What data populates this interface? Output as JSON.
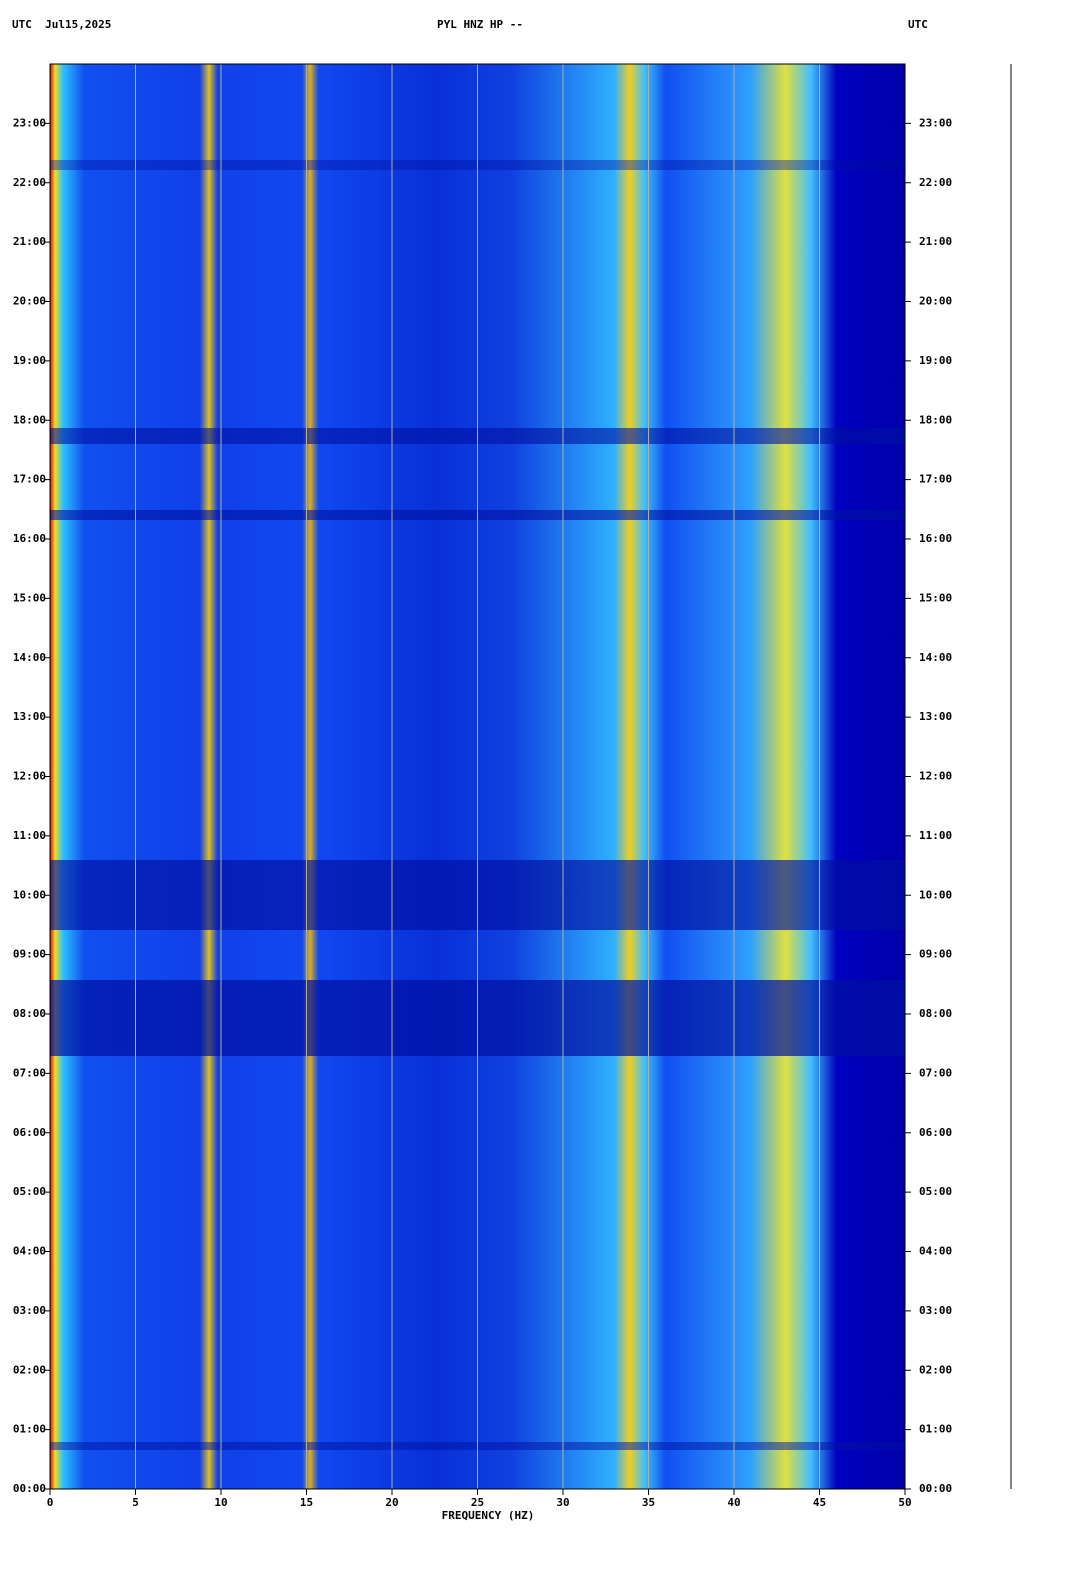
{
  "chart_data": {
    "type": "spectrogram",
    "title": "PYL HNZ HP --",
    "left_header": "UTC  Jul15,2025",
    "right_header": "UTC",
    "x_label": "FREQUENCY (HZ)",
    "xlim": [
      0,
      50
    ],
    "xticks": [
      0,
      5,
      10,
      15,
      20,
      25,
      30,
      35,
      40,
      45,
      50
    ],
    "ylim": [
      0,
      24
    ],
    "yticks": [
      {
        "value": 0,
        "label": "00:00"
      },
      {
        "value": 1,
        "label": "01:00"
      },
      {
        "value": 2,
        "label": "02:00"
      },
      {
        "value": 3,
        "label": "03:00"
      },
      {
        "value": 4,
        "label": "04:00"
      },
      {
        "value": 5,
        "label": "05:00"
      },
      {
        "value": 6,
        "label": "06:00"
      },
      {
        "value": 7,
        "label": "07:00"
      },
      {
        "value": 8,
        "label": "08:00"
      },
      {
        "value": 9,
        "label": "09:00"
      },
      {
        "value": 10,
        "label": "10:00"
      },
      {
        "value": 11,
        "label": "11:00"
      },
      {
        "value": 12,
        "label": "12:00"
      },
      {
        "value": 13,
        "label": "13:00"
      },
      {
        "value": 14,
        "label": "14:00"
      },
      {
        "value": 15,
        "label": "15:00"
      },
      {
        "value": 16,
        "label": "16:00"
      },
      {
        "value": 17,
        "label": "17:00"
      },
      {
        "value": 18,
        "label": "18:00"
      },
      {
        "value": 19,
        "label": "19:00"
      },
      {
        "value": 20,
        "label": "20:00"
      },
      {
        "value": 21,
        "label": "21:00"
      },
      {
        "value": 22,
        "label": "22:00"
      },
      {
        "value": 23,
        "label": "23:00"
      }
    ],
    "grid": true
  }
}
